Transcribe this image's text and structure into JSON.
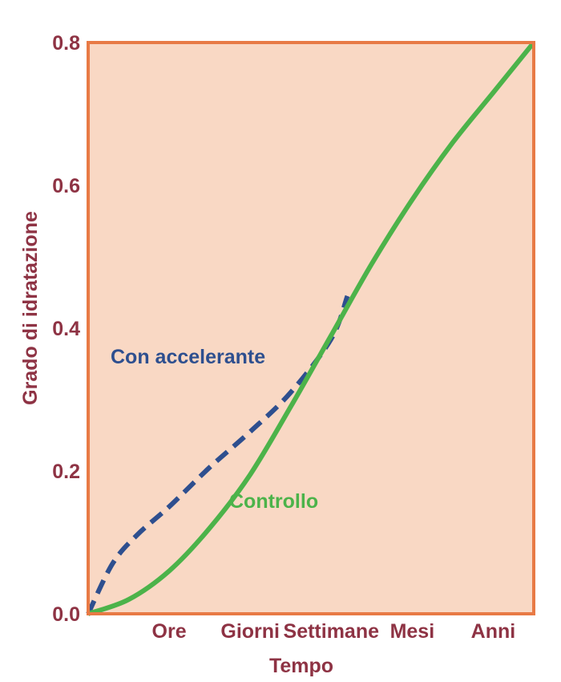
{
  "chart_data": {
    "type": "line",
    "xlabel": "Tempo",
    "ylabel": "Grado di idratazione",
    "categories": [
      "Ore",
      "Giorni",
      "Settimane",
      "Mesi",
      "Anni"
    ],
    "yticks": [
      "0.0",
      "0.2",
      "0.4",
      "0.6",
      "0.8"
    ],
    "ylim": [
      0,
      0.8
    ],
    "grid": false,
    "legend": "none",
    "series": [
      {
        "name": "Controllo",
        "style": "solid",
        "color": "#4cb34a",
        "points": [
          [
            0,
            0
          ],
          [
            0.5,
            0.02
          ],
          [
            1,
            0.06
          ],
          [
            1.5,
            0.12
          ],
          [
            2,
            0.195
          ],
          [
            2.5,
            0.29
          ],
          [
            3,
            0.39
          ],
          [
            3.5,
            0.49
          ],
          [
            4,
            0.58
          ],
          [
            4.5,
            0.66
          ],
          [
            5,
            0.73
          ],
          [
            5.5,
            0.8
          ]
        ]
      },
      {
        "name": "Con accelerante",
        "style": "dashed",
        "color": "#2e4f8f",
        "points": [
          [
            0,
            0
          ],
          [
            0.3,
            0.07
          ],
          [
            0.6,
            0.11
          ],
          [
            1,
            0.15
          ],
          [
            1.5,
            0.205
          ],
          [
            2,
            0.255
          ],
          [
            2.5,
            0.31
          ],
          [
            3,
            0.385
          ],
          [
            3.2,
            0.445
          ]
        ]
      }
    ],
    "colors": {
      "plot_background": "#f9d8c4",
      "frame": "#e87a45",
      "text": "#8e3344"
    }
  }
}
